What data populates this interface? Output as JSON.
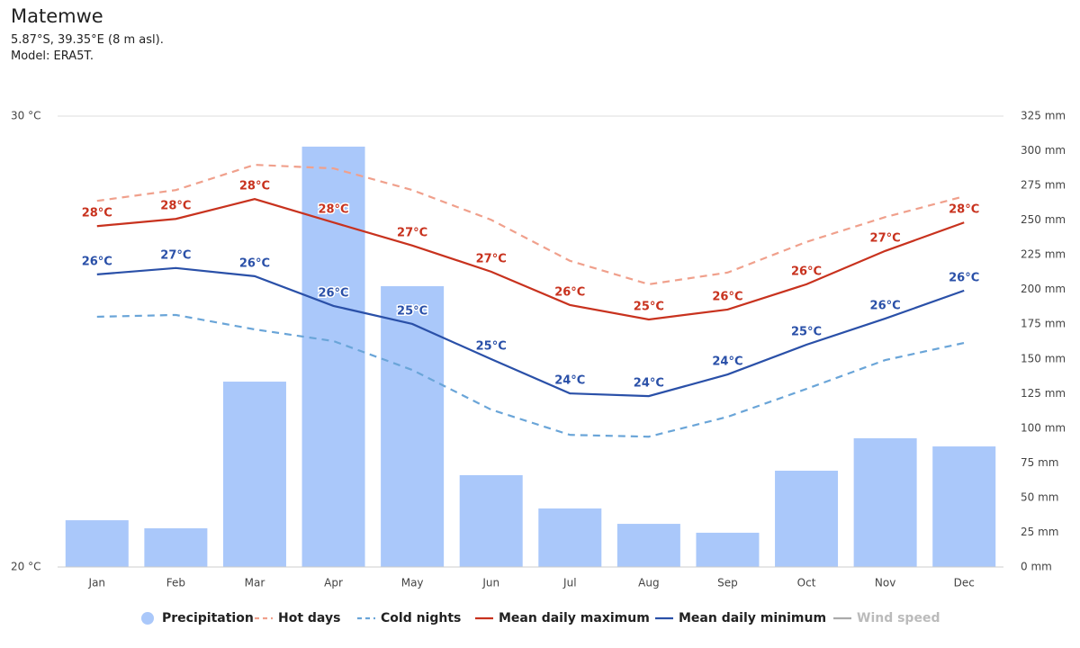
{
  "chart_data": {
    "type": "combo",
    "title": "Matemwe",
    "subtitle": [
      "5.87°S, 39.35°E (8 m asl).",
      "Model: ERA5T."
    ],
    "categories": [
      "Jan",
      "Feb",
      "Mar",
      "Apr",
      "May",
      "Jun",
      "Jul",
      "Aug",
      "Sep",
      "Oct",
      "Nov",
      "Dec"
    ],
    "ylim": [
      20,
      30
    ],
    "yticks": [
      {
        "value": 20,
        "label": "20 °C"
      },
      {
        "value": 30,
        "label": "30 °C"
      }
    ],
    "y2lim": [
      0,
      325
    ],
    "y2ticks": [
      {
        "value": 0,
        "label": "0 mm"
      },
      {
        "value": 25,
        "label": "25 mm"
      },
      {
        "value": 50,
        "label": "50 mm"
      },
      {
        "value": 75,
        "label": "75 mm"
      },
      {
        "value": 100,
        "label": "100 mm"
      },
      {
        "value": 125,
        "label": "125 mm"
      },
      {
        "value": 150,
        "label": "150 mm"
      },
      {
        "value": 175,
        "label": "175 mm"
      },
      {
        "value": 200,
        "label": "200 mm"
      },
      {
        "value": 225,
        "label": "225 mm"
      },
      {
        "value": 250,
        "label": "250 mm"
      },
      {
        "value": 275,
        "label": "275 mm"
      },
      {
        "value": 300,
        "label": "300 mm"
      },
      {
        "value": 325,
        "label": "325 mm"
      }
    ],
    "grid": true,
    "legend": "bottom",
    "series": [
      {
        "name": "Precipitation",
        "type": "bar",
        "axis": "y2",
        "color": "#aac8fa",
        "values": [
          33.7,
          27.9,
          133.6,
          303,
          202.4,
          66.2,
          42.2,
          31.1,
          24.7,
          69.4,
          92.8,
          86.9
        ]
      },
      {
        "name": "Hot days",
        "type": "line",
        "dash": true,
        "color": "#f0a08c",
        "values": [
          28.12,
          28.36,
          28.92,
          28.84,
          28.36,
          27.7,
          26.79,
          26.27,
          26.53,
          27.21,
          27.76,
          28.22
        ]
      },
      {
        "name": "Cold nights",
        "type": "line",
        "dash": true,
        "color": "#6aa5d8",
        "values": [
          25.55,
          25.59,
          25.27,
          25.01,
          24.37,
          23.49,
          22.93,
          22.89,
          23.33,
          23.95,
          24.59,
          24.97
        ]
      },
      {
        "name": "Mean daily maximum",
        "type": "line",
        "dash": false,
        "color": "#c8321e",
        "values": [
          27.56,
          27.72,
          28.16,
          27.64,
          27.13,
          26.55,
          25.81,
          25.49,
          25.71,
          26.27,
          27.01,
          27.64
        ],
        "value_labels": [
          "28°C",
          "28°C",
          "28°C",
          "28°C",
          "27°C",
          "27°C",
          "26°C",
          "25°C",
          "26°C",
          "26°C",
          "27°C",
          "28°C"
        ]
      },
      {
        "name": "Mean daily minimum",
        "type": "line",
        "dash": false,
        "color": "#2a50a8",
        "values": [
          26.49,
          26.63,
          26.45,
          25.79,
          25.39,
          24.61,
          23.85,
          23.79,
          24.27,
          24.93,
          25.51,
          26.13
        ],
        "value_labels": [
          "26°C",
          "27°C",
          "26°C",
          "26°C",
          "25°C",
          "25°C",
          "24°C",
          "24°C",
          "24°C",
          "25°C",
          "26°C",
          "26°C"
        ]
      },
      {
        "name": "Wind speed",
        "type": "line",
        "dash": false,
        "color": "#aaaaaa",
        "visible": false,
        "values": [
          null,
          null,
          null,
          null,
          null,
          null,
          null,
          null,
          null,
          null,
          null,
          null
        ]
      }
    ]
  }
}
